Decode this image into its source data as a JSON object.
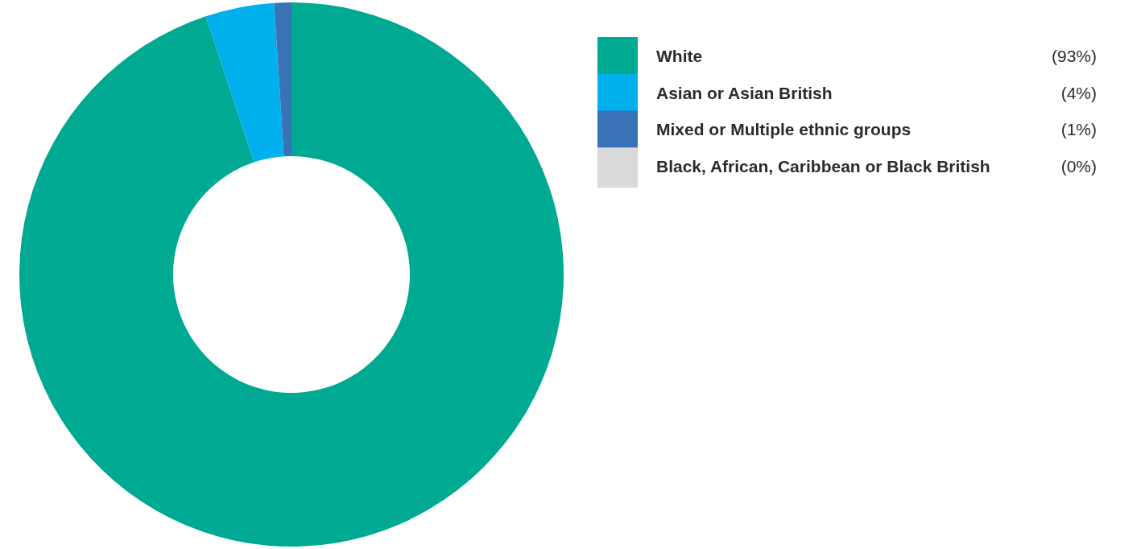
{
  "chart_data": {
    "type": "donut",
    "categories": [
      "White",
      "Asian or Asian British",
      "Mixed or Multiple ethnic groups",
      "Black, African, Caribbean or Black British"
    ],
    "values": [
      93,
      4,
      1,
      0
    ],
    "colors": [
      "#00a991",
      "#00b0ec",
      "#3a72b8",
      "#d9d9d9"
    ],
    "value_labels": [
      "(93%)",
      "(4%)",
      "(1%)",
      "(0%)"
    ],
    "legend": "right"
  }
}
